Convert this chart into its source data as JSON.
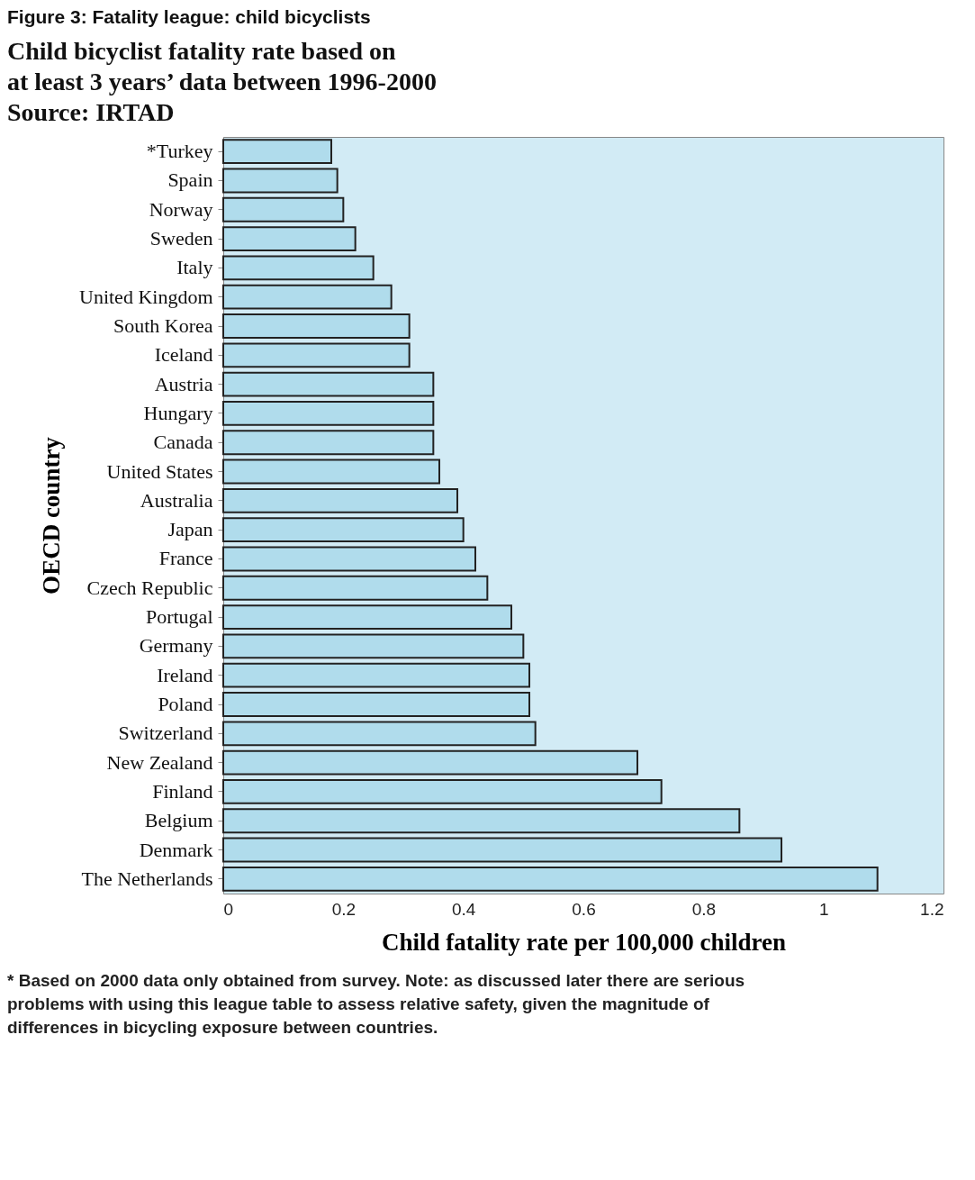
{
  "chart_data": {
    "type": "bar",
    "orientation": "horizontal",
    "title": "Figure 3:  Fatality league: child bicyclists",
    "subtitle": "Child bicyclist fatality rate based on\nat least 3 years’ data between 1996-2000\nSource: IRTAD",
    "xlabel": "Child fatality rate per 100,000 children",
    "ylabel": "OECD country",
    "categories": [
      "*Turkey",
      "Spain",
      "Norway",
      "Sweden",
      "Italy",
      "United Kingdom",
      "South Korea",
      "Iceland",
      "Austria",
      "Hungary",
      "Canada",
      "United States",
      "Australia",
      "Japan",
      "France",
      "Czech Republic",
      "Portugal",
      "Germany",
      "Ireland",
      "Poland",
      "Switzerland",
      "New Zealand",
      "Finland",
      "Belgium",
      "Denmark",
      "The Netherlands"
    ],
    "values": [
      0.18,
      0.19,
      0.2,
      0.22,
      0.25,
      0.28,
      0.31,
      0.31,
      0.35,
      0.35,
      0.35,
      0.36,
      0.39,
      0.4,
      0.42,
      0.44,
      0.48,
      0.5,
      0.51,
      0.51,
      0.52,
      0.69,
      0.73,
      0.86,
      0.93,
      1.09
    ],
    "color": "#b0dcec",
    "xlim": [
      0,
      1.2
    ],
    "xticks": [
      0,
      0.2,
      0.4,
      0.6,
      0.8,
      1,
      1.2
    ],
    "grid": false,
    "annotations": [
      "*  Based on 2000 data only obtained from survey. Note: as discussed later there are serious problems with using this league table to assess relative safety, given the magnitude of differences in bicycling exposure between countries."
    ]
  }
}
